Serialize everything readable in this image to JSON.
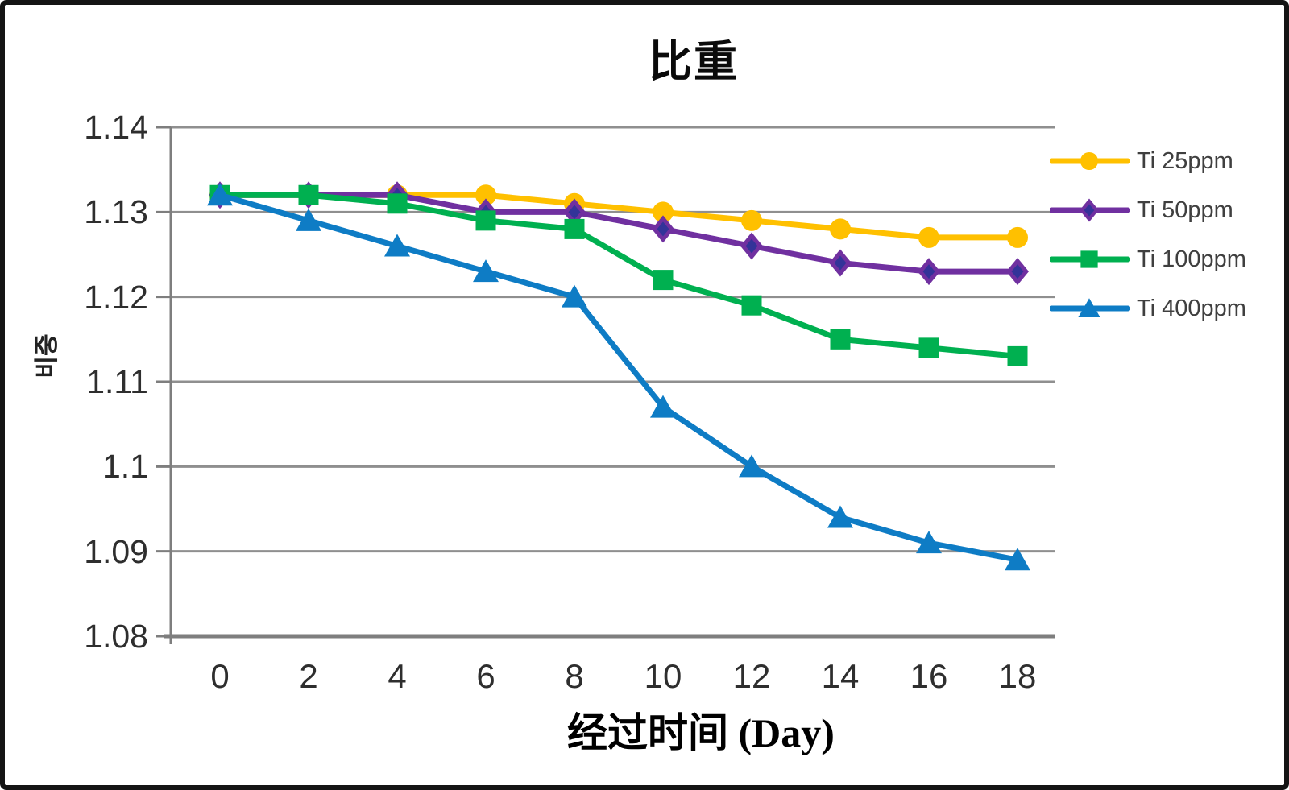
{
  "chart_data": {
    "type": "line",
    "title": "比重",
    "x_axis_title": "经过时间 (Day)",
    "y_axis_title": "비중",
    "categories": [
      "0",
      "2",
      "4",
      "6",
      "8",
      "10",
      "12",
      "14",
      "16",
      "18"
    ],
    "y_tick_labels": [
      "1.14",
      "1.13",
      "1.12",
      "1.11",
      "1.1",
      "1.09",
      "1.08"
    ],
    "y_tick_values": [
      1.14,
      1.13,
      1.12,
      1.11,
      1.1,
      1.09,
      1.08
    ],
    "ylim": [
      1.08,
      1.14
    ],
    "grid": true,
    "legend_position": "right",
    "series": [
      {
        "name": "Ti 25ppm",
        "color": "#FFC000",
        "marker": "circle",
        "values": [
          1.132,
          1.132,
          1.132,
          1.132,
          1.131,
          1.13,
          1.129,
          1.128,
          1.127,
          1.127
        ]
      },
      {
        "name": "Ti 50ppm",
        "color": "#7030A0",
        "marker": "diamond",
        "marker_inner_color": "#333399",
        "values": [
          1.132,
          1.132,
          1.132,
          1.13,
          1.13,
          1.128,
          1.126,
          1.124,
          1.123,
          1.123
        ]
      },
      {
        "name": "Ti 100ppm",
        "color": "#00B050",
        "marker": "square",
        "values": [
          1.132,
          1.132,
          1.131,
          1.129,
          1.128,
          1.122,
          1.119,
          1.115,
          1.114,
          1.113
        ]
      },
      {
        "name": "Ti 400ppm",
        "color": "#0E7CC5",
        "marker": "triangle",
        "values": [
          1.132,
          1.129,
          1.126,
          1.123,
          1.12,
          1.107,
          1.1,
          1.094,
          1.091,
          1.089
        ]
      }
    ],
    "colors": {
      "gridline": "#8F8F8F",
      "axis": "#7E7E7E",
      "tick_label": "#2E2E2E",
      "legend_text": "#3F3F3F",
      "title": "#0A0A0A"
    }
  }
}
